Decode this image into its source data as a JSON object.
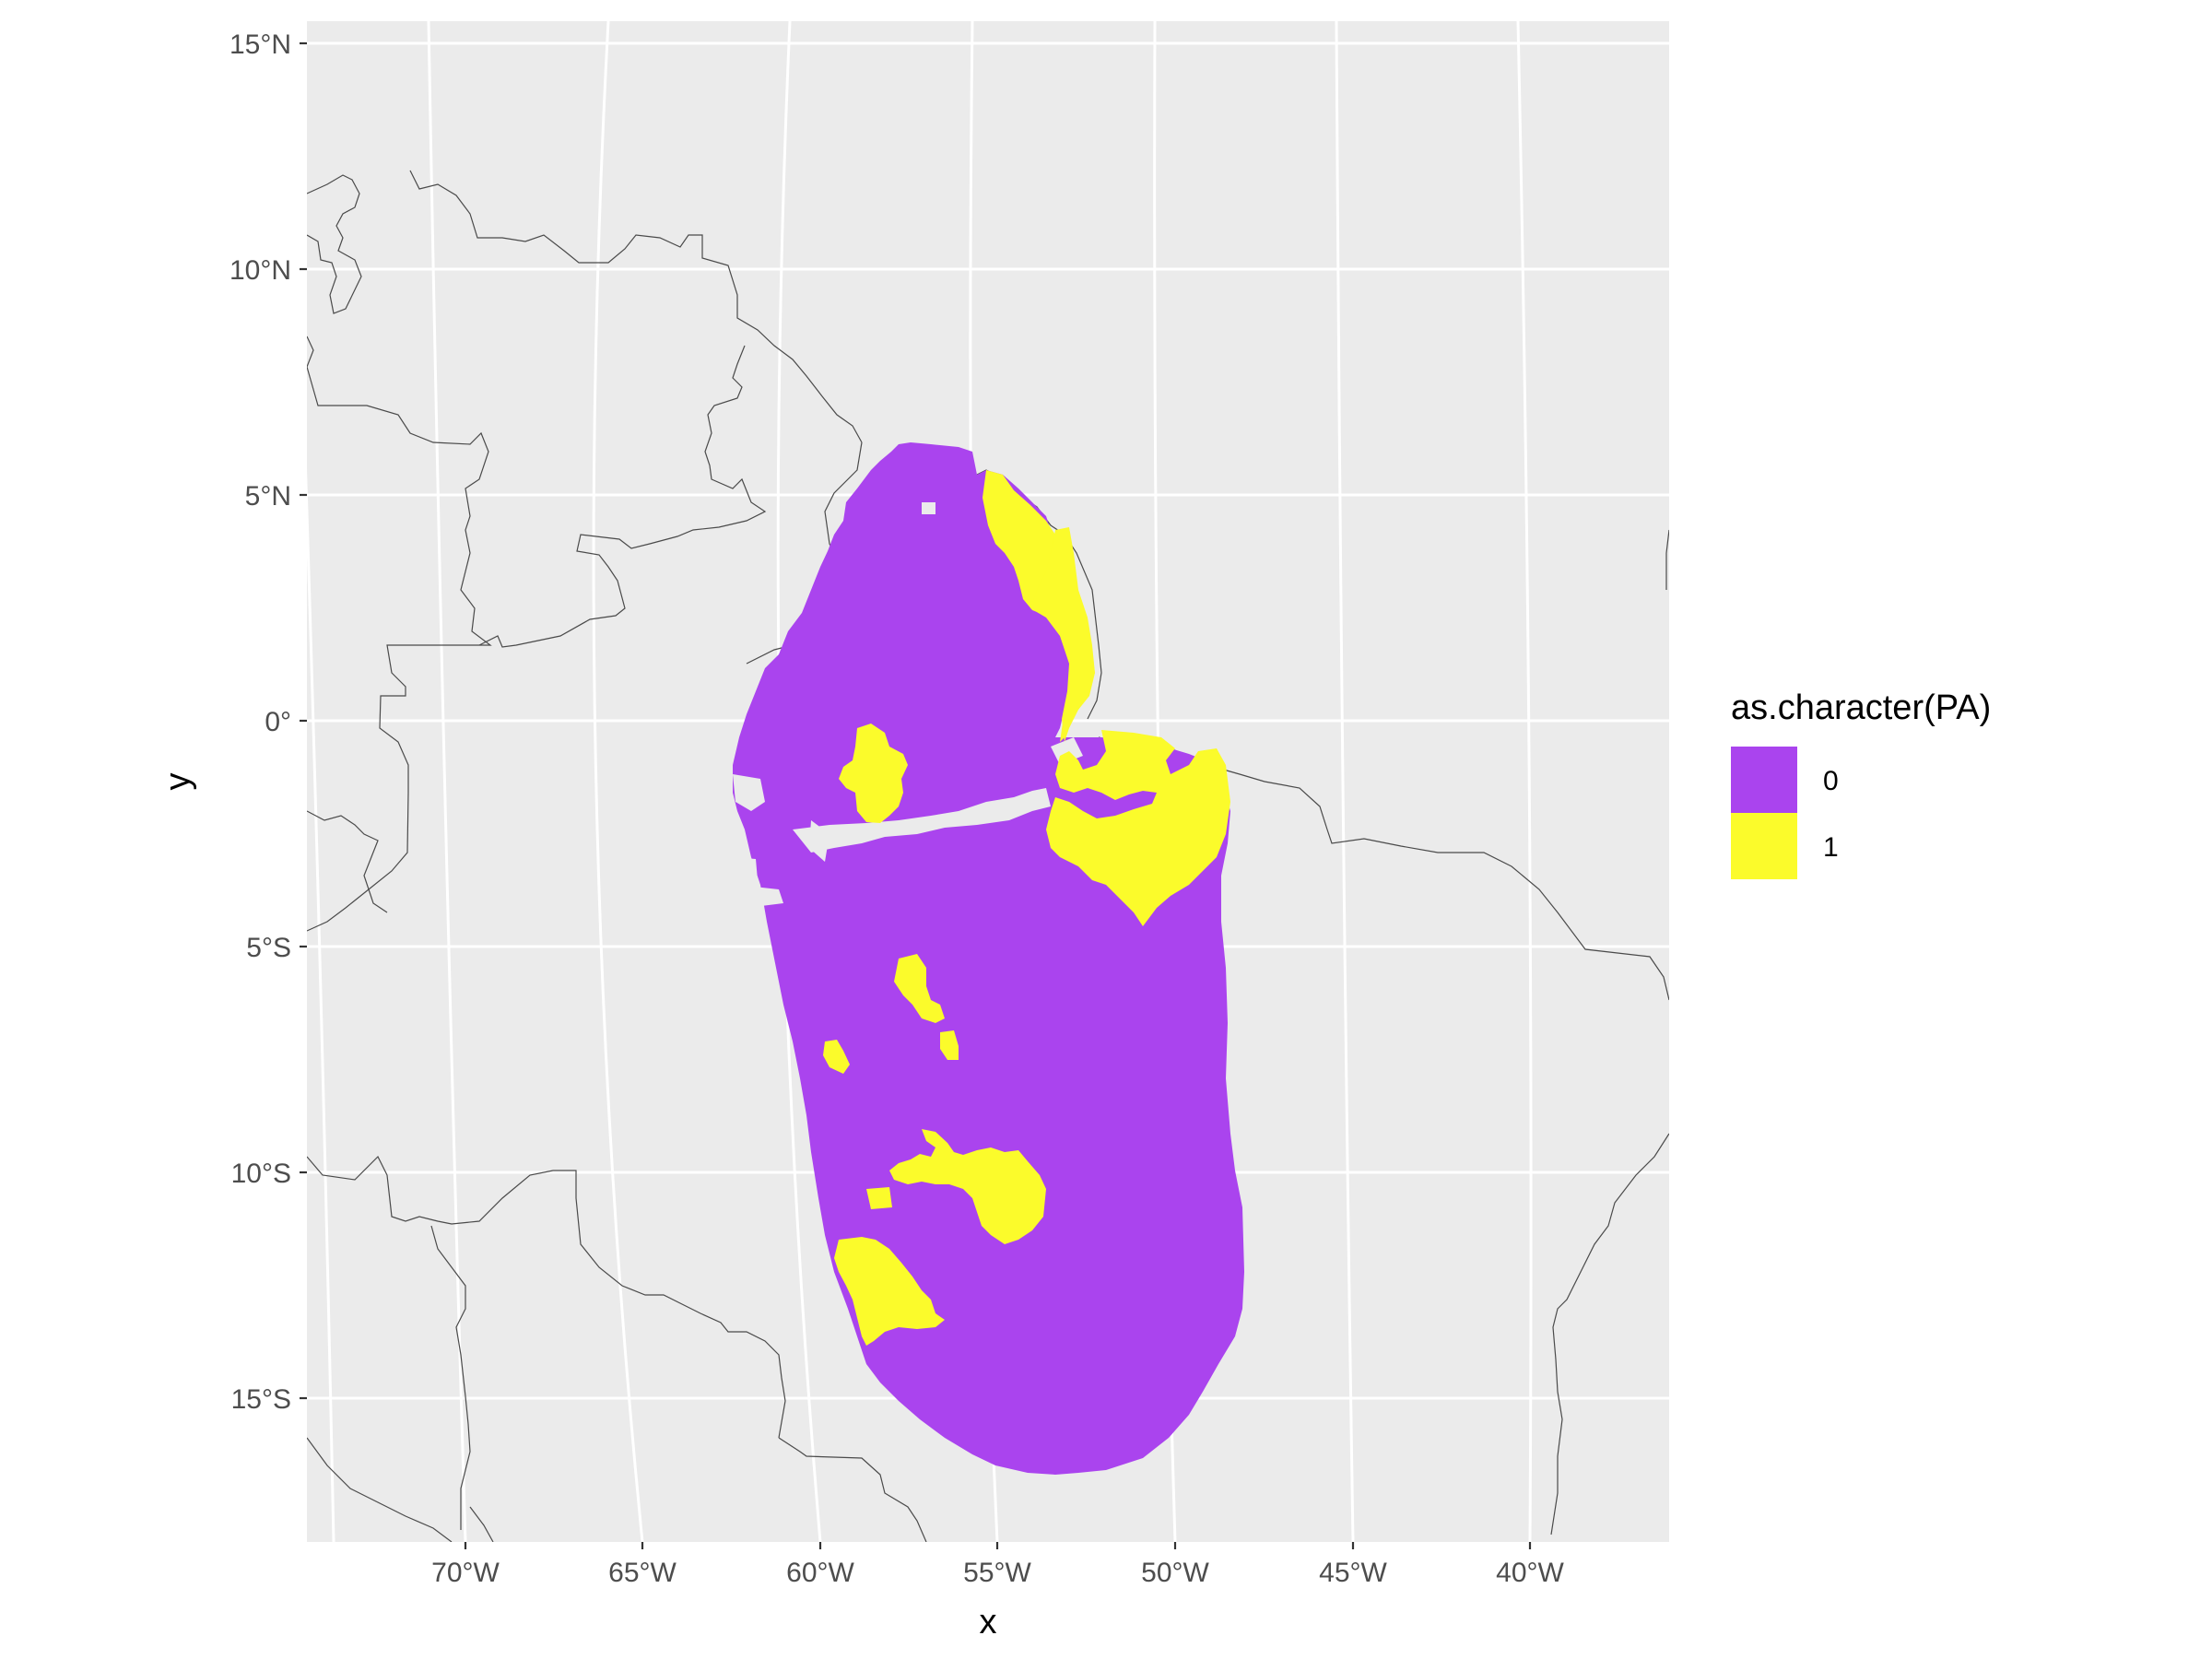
{
  "chart_data": {
    "type": "map-raster",
    "title": "",
    "xlabel": "x",
    "ylabel": "y",
    "x_ticks": [
      "70°W",
      "65°W",
      "60°W",
      "55°W",
      "50°W",
      "45°W",
      "40°W"
    ],
    "y_ticks": [
      "15°N",
      "10°N",
      "5°N",
      "0°",
      "5°S",
      "10°S",
      "15°S"
    ],
    "legend": {
      "title": "as.character(PA)",
      "entries": [
        {
          "label": "0",
          "color": "#aa44ee"
        },
        {
          "label": "1",
          "color": "#fbfb2b"
        }
      ]
    },
    "colors": {
      "panel": "#ebebeb",
      "grid": "#ffffff",
      "coastline": "#4a4a4a",
      "absence": "#aa44ee",
      "presence": "#fbfb2b"
    }
  }
}
